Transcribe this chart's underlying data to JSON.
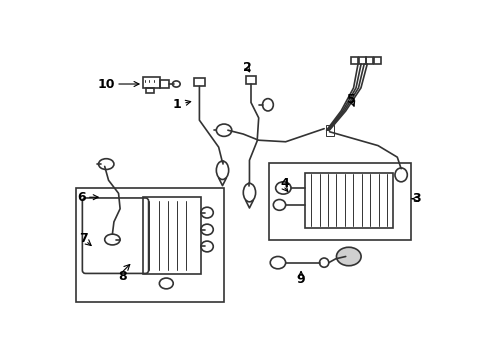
{
  "bg_color": "#ffffff",
  "line_color": "#333333",
  "figsize": [
    4.89,
    3.6
  ],
  "dpi": 100,
  "lw": 1.2,
  "lw_thick": 2.0,
  "lw_thin": 0.7,
  "font_size": 8,
  "font_size_label": 9
}
